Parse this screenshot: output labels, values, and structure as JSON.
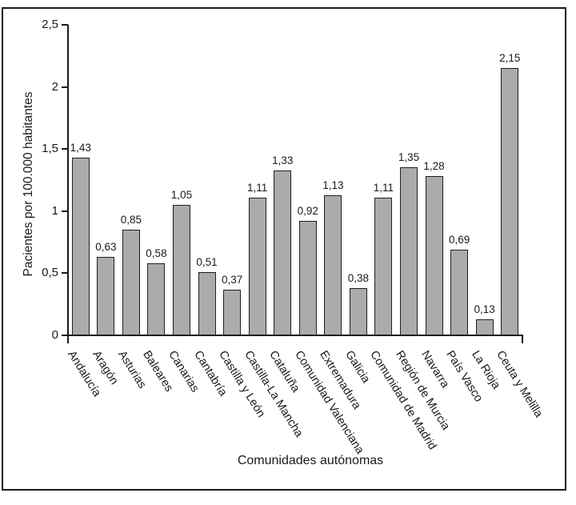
{
  "figure": {
    "background_color": "#ffffff",
    "frame_border_color": "#1a1a1a"
  },
  "chart_data": {
    "type": "bar",
    "title": "",
    "xlabel": "Comunidades autónomas",
    "ylabel": "Pacientes por 100.000 habitantes",
    "ylim": [
      0,
      2.5
    ],
    "yticks": [
      0,
      0.5,
      1,
      1.5,
      2,
      2.5
    ],
    "ytick_labels": [
      "0",
      "0,5",
      "1",
      "1,5",
      "2",
      "2,5"
    ],
    "categories": [
      "Andalucía",
      "Aragón",
      "Asturias",
      "Baleares",
      "Canarias",
      "Cantabría",
      "Castilla y León",
      "Castilla-La Mancha",
      "Cataluña",
      "Comunidad Valenciana",
      "Extremadura",
      "Galicia",
      "Comunidad de Madrid",
      "Región de Murcia",
      "Navarra",
      "País Vasco",
      "La Rioja",
      "Ceuta y Melilla"
    ],
    "values": [
      1.43,
      0.63,
      0.85,
      0.58,
      1.05,
      0.51,
      0.37,
      1.11,
      1.33,
      0.92,
      1.13,
      0.38,
      1.11,
      1.35,
      1.28,
      0.69,
      0.13,
      2.15
    ],
    "value_labels": [
      "1,43",
      "0,63",
      "0,85",
      "0,58",
      "1,05",
      "0,51",
      "0,37",
      "1,11",
      "1,33",
      "0,92",
      "1,13",
      "0,38",
      "1,11",
      "1,35",
      "1,28",
      "0,69",
      "0,13",
      "2,15"
    ],
    "bar_color": "#ababab",
    "bar_border_color": "#1f1f1f",
    "grid": false,
    "legend": "none",
    "x_label_rotation_deg": 58
  }
}
